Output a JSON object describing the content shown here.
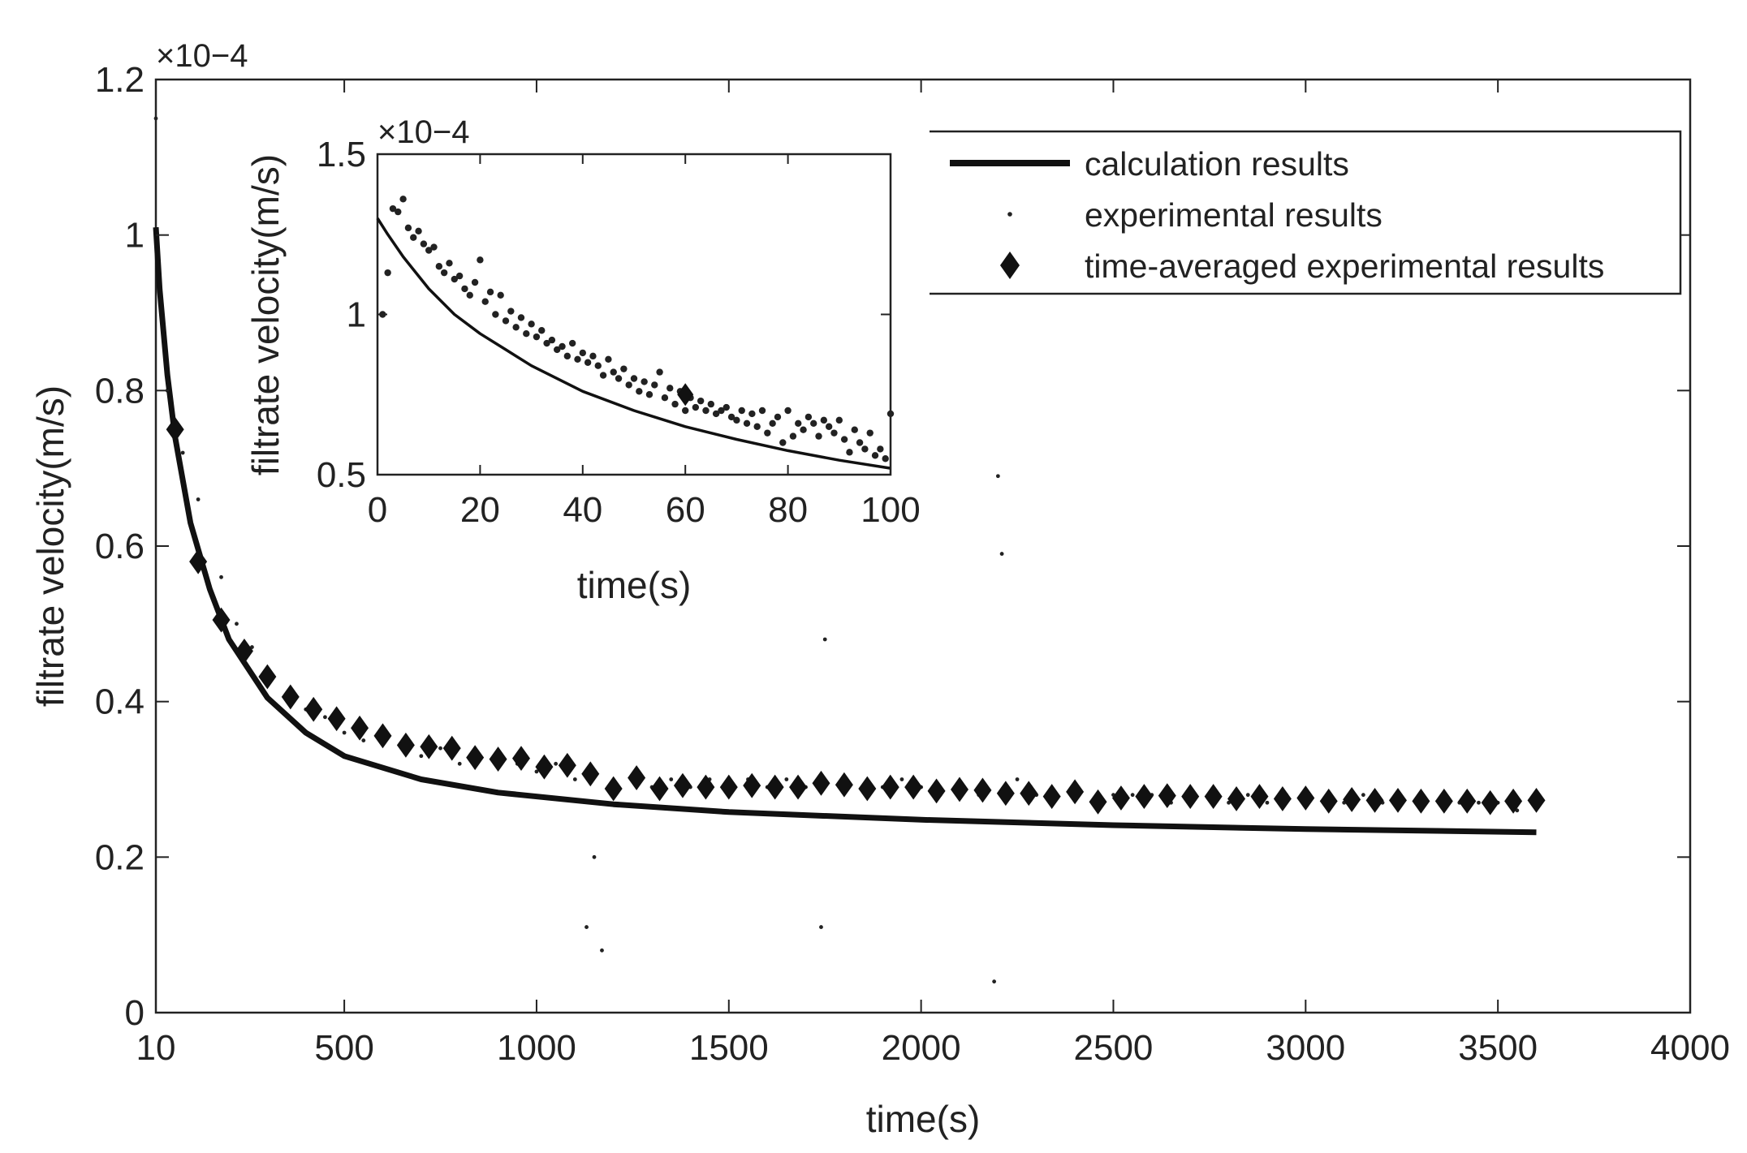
{
  "chart_data": [
    {
      "id": "main",
      "type": "scatter",
      "xlabel": "time(s)",
      "ylabel": "filtrate velocity(m/s)",
      "y_multiplier": "×10−4",
      "xlim": [
        10,
        4000
      ],
      "ylim": [
        0,
        1.2
      ],
      "x_ticks": [
        10,
        500,
        1000,
        1500,
        2000,
        2500,
        3000,
        3500,
        4000
      ],
      "x_tick_labels": [
        "10",
        "500",
        "1000",
        "1500",
        "2000",
        "2500",
        "3000",
        "3500",
        "4000"
      ],
      "y_ticks": [
        0,
        0.2,
        0.4,
        0.6,
        0.8,
        1,
        1.2
      ],
      "y_tick_labels": [
        "0",
        "0.2",
        "0.4",
        "0.6",
        "0.8",
        "1",
        "1.2"
      ],
      "grid": false,
      "legend": {
        "position": "top-right",
        "entries": [
          "calculation results",
          "experimental results",
          "time-averaged experimental results"
        ]
      },
      "series": [
        {
          "name": "calculation results",
          "kind": "line",
          "x": [
            10,
            20,
            40,
            60,
            100,
            150,
            200,
            300,
            400,
            500,
            700,
            900,
            1200,
            1500,
            2000,
            2500,
            3000,
            3600
          ],
          "values": [
            1.01,
            0.93,
            0.82,
            0.74,
            0.63,
            0.545,
            0.48,
            0.405,
            0.36,
            0.33,
            0.3,
            0.283,
            0.268,
            0.258,
            0.248,
            0.241,
            0.236,
            0.232
          ]
        },
        {
          "name": "experimental results",
          "kind": "dots",
          "x": [
            10,
            40,
            80,
            120,
            180,
            220,
            260,
            300,
            350,
            400,
            450,
            500,
            550,
            600,
            650,
            700,
            750,
            800,
            850,
            900,
            950,
            1000,
            1050,
            1100,
            1130,
            1150,
            1170,
            1200,
            1250,
            1300,
            1350,
            1400,
            1450,
            1500,
            1550,
            1600,
            1650,
            1700,
            1740,
            1750,
            1800,
            1850,
            1900,
            1950,
            2000,
            2050,
            2100,
            2150,
            2190,
            2200,
            2210,
            2250,
            2300,
            2350,
            2400,
            2450,
            2500,
            2550,
            2600,
            2650,
            2700,
            2750,
            2800,
            2850,
            2900,
            2950,
            3000,
            3050,
            3100,
            3150,
            3200,
            3250,
            3300,
            3350,
            3400,
            3450,
            3500,
            3550,
            3600
          ],
          "values": [
            1.15,
            0.8,
            0.72,
            0.66,
            0.56,
            0.5,
            0.47,
            0.44,
            0.41,
            0.39,
            0.38,
            0.36,
            0.35,
            0.35,
            0.34,
            0.33,
            0.34,
            0.32,
            0.33,
            0.33,
            0.32,
            0.31,
            0.32,
            0.3,
            0.11,
            0.2,
            0.08,
            0.28,
            0.3,
            0.29,
            0.3,
            0.29,
            0.3,
            0.28,
            0.3,
            0.29,
            0.3,
            0.29,
            0.11,
            0.48,
            0.3,
            0.29,
            0.29,
            0.3,
            0.29,
            0.28,
            0.29,
            0.28,
            0.04,
            0.69,
            0.59,
            0.3,
            0.28,
            0.28,
            0.29,
            0.27,
            0.28,
            0.28,
            0.28,
            0.27,
            0.28,
            0.28,
            0.27,
            0.28,
            0.27,
            0.28,
            0.28,
            0.27,
            0.27,
            0.28,
            0.27,
            0.27,
            0.27,
            0.27,
            0.27,
            0.27,
            0.27,
            0.26,
            0.27
          ]
        },
        {
          "name": "time-averaged experimental results",
          "kind": "diamond",
          "x": [
            60,
            120,
            180,
            240,
            300,
            360,
            420,
            480,
            540,
            600,
            660,
            720,
            780,
            840,
            900,
            960,
            1020,
            1080,
            1140,
            1200,
            1260,
            1320,
            1380,
            1440,
            1500,
            1560,
            1620,
            1680,
            1740,
            1800,
            1860,
            1920,
            1980,
            2040,
            2100,
            2160,
            2220,
            2280,
            2340,
            2400,
            2460,
            2520,
            2580,
            2640,
            2700,
            2760,
            2820,
            2880,
            2940,
            3000,
            3060,
            3120,
            3180,
            3240,
            3300,
            3360,
            3420,
            3480,
            3540,
            3600
          ],
          "values": [
            0.75,
            0.58,
            0.505,
            0.465,
            0.432,
            0.406,
            0.39,
            0.378,
            0.366,
            0.356,
            0.344,
            0.342,
            0.34,
            0.328,
            0.326,
            0.327,
            0.316,
            0.318,
            0.307,
            0.288,
            0.302,
            0.288,
            0.292,
            0.29,
            0.29,
            0.292,
            0.29,
            0.29,
            0.295,
            0.293,
            0.288,
            0.29,
            0.29,
            0.285,
            0.287,
            0.286,
            0.282,
            0.282,
            0.278,
            0.284,
            0.271,
            0.276,
            0.278,
            0.279,
            0.278,
            0.278,
            0.275,
            0.278,
            0.275,
            0.276,
            0.272,
            0.274,
            0.273,
            0.273,
            0.272,
            0.272,
            0.272,
            0.27,
            0.272,
            0.273
          ]
        }
      ]
    },
    {
      "id": "inset",
      "type": "scatter",
      "xlabel": "time(s)",
      "ylabel": "filtrate velocity(m/s)",
      "y_multiplier": "×10−4",
      "xlim": [
        0,
        100
      ],
      "ylim": [
        0.5,
        1.5
      ],
      "x_ticks": [
        0,
        20,
        40,
        60,
        80,
        100
      ],
      "x_tick_labels": [
        "0",
        "20",
        "40",
        "60",
        "80",
        "100"
      ],
      "y_ticks": [
        0.5,
        1,
        1.5
      ],
      "y_tick_labels": [
        "0.5",
        "1",
        "1.5"
      ],
      "grid": false,
      "series": [
        {
          "name": "calculation results",
          "kind": "line",
          "x": [
            0,
            2,
            5,
            10,
            15,
            20,
            25,
            30,
            40,
            50,
            60,
            70,
            80,
            90,
            100
          ],
          "values": [
            1.3,
            1.25,
            1.18,
            1.08,
            1.0,
            0.94,
            0.89,
            0.84,
            0.76,
            0.7,
            0.65,
            0.61,
            0.575,
            0.545,
            0.52
          ]
        },
        {
          "name": "experimental results",
          "kind": "dots",
          "x": [
            1,
            2,
            3,
            4,
            5,
            6,
            7,
            8,
            9,
            10,
            11,
            12,
            13,
            14,
            15,
            16,
            17,
            18,
            19,
            20,
            21,
            22,
            23,
            24,
            25,
            26,
            27,
            28,
            29,
            30,
            31,
            32,
            33,
            34,
            35,
            36,
            37,
            38,
            39,
            40,
            41,
            42,
            43,
            44,
            45,
            46,
            47,
            48,
            49,
            50,
            51,
            52,
            53,
            54,
            55,
            56,
            57,
            58,
            59,
            60,
            61,
            62,
            63,
            64,
            65,
            66,
            67,
            68,
            69,
            70,
            71,
            72,
            73,
            74,
            75,
            76,
            77,
            78,
            79,
            80,
            81,
            82,
            83,
            84,
            85,
            86,
            87,
            88,
            89,
            90,
            91,
            92,
            93,
            94,
            95,
            96,
            97,
            98,
            99,
            100
          ],
          "values": [
            1.0,
            1.13,
            1.33,
            1.32,
            1.36,
            1.27,
            1.24,
            1.26,
            1.22,
            1.2,
            1.21,
            1.15,
            1.13,
            1.16,
            1.11,
            1.12,
            1.08,
            1.06,
            1.1,
            1.17,
            1.04,
            1.07,
            1.0,
            1.06,
            0.98,
            1.01,
            0.96,
            0.99,
            0.94,
            0.97,
            0.93,
            0.95,
            0.91,
            0.92,
            0.89,
            0.9,
            0.87,
            0.91,
            0.86,
            0.88,
            0.85,
            0.87,
            0.84,
            0.81,
            0.86,
            0.82,
            0.8,
            0.83,
            0.78,
            0.8,
            0.76,
            0.79,
            0.75,
            0.78,
            0.82,
            0.74,
            0.77,
            0.72,
            0.76,
            0.7,
            0.74,
            0.71,
            0.73,
            0.7,
            0.72,
            0.69,
            0.7,
            0.71,
            0.68,
            0.67,
            0.7,
            0.66,
            0.69,
            0.65,
            0.7,
            0.63,
            0.66,
            0.68,
            0.6,
            0.7,
            0.62,
            0.66,
            0.64,
            0.68,
            0.66,
            0.62,
            0.67,
            0.65,
            0.63,
            0.67,
            0.61,
            0.57,
            0.64,
            0.6,
            0.58,
            0.63,
            0.56,
            0.58,
            0.55,
            0.69
          ]
        },
        {
          "name": "time-averaged experimental results",
          "kind": "diamond",
          "x": [
            60
          ],
          "values": [
            0.75
          ]
        }
      ]
    }
  ]
}
